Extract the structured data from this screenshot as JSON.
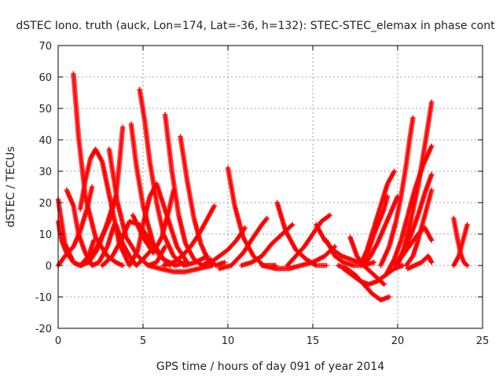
{
  "chart_data": {
    "type": "scatter",
    "title": "dSTEC Iono. truth (auck, Lon=174, Lat=-36, h=132): STEC-STEC_elemax in phase cont",
    "xlabel": "GPS time / hours of day 091 of year 2014",
    "ylabel": "dSTEC  / TECUs",
    "xlim": [
      0,
      25
    ],
    "ylim": [
      -20,
      70
    ],
    "x_ticks": [
      0,
      5,
      10,
      15,
      20,
      25
    ],
    "y_ticks": [
      -20,
      -10,
      0,
      10,
      20,
      30,
      40,
      50,
      60,
      70
    ],
    "grid": true,
    "legend": "none",
    "marker": "plus",
    "marker_color": "#ff0000",
    "series": [
      {
        "x": [
          0.0,
          0.4,
          0.9,
          1.3,
          1.8,
          2.1
        ],
        "y": [
          21,
          7,
          1,
          0,
          3,
          8
        ]
      },
      {
        "x": [
          0.0,
          0.4,
          0.9,
          1.3,
          1.7,
          2.0
        ],
        "y": [
          0,
          3,
          6,
          11,
          18,
          25
        ]
      },
      {
        "x": [
          0.0,
          0.2,
          0.5,
          0.9,
          1.3,
          1.8,
          2.3,
          2.8,
          3.4
        ],
        "y": [
          14,
          8,
          4,
          1,
          0,
          1,
          5,
          12,
          22
        ]
      },
      {
        "x": [
          0.5,
          0.9,
          1.2,
          1.6,
          2.0,
          2.4,
          2.9,
          3.3
        ],
        "y": [
          24,
          19,
          10,
          4,
          0,
          1,
          6,
          13
        ]
      },
      {
        "x": [
          0.9,
          1.2,
          1.6,
          2.2,
          2.9,
          3.4,
          3.8
        ],
        "y": [
          61,
          41,
          22,
          9,
          3,
          1,
          0
        ]
      },
      {
        "x": [
          1.3,
          1.6,
          1.9,
          2.2,
          2.6,
          3.1,
          3.6,
          4.2
        ],
        "y": [
          18,
          27,
          34,
          37,
          33,
          20,
          7,
          0
        ]
      },
      {
        "x": [
          1.4,
          2.2,
          3.0,
          3.4,
          3.6,
          3.8
        ],
        "y": [
          0,
          5,
          14,
          22,
          32,
          44
        ]
      },
      {
        "x": [
          3.0,
          3.5,
          4.0,
          4.7,
          5.3,
          5.8,
          6.3
        ],
        "y": [
          37,
          20,
          9,
          3,
          0,
          1,
          6
        ]
      },
      {
        "x": [
          3.4,
          3.8,
          4.2,
          4.6,
          5.0,
          5.5
        ],
        "y": [
          13,
          7,
          3,
          0,
          2,
          5
        ]
      },
      {
        "x": [
          2.6,
          3.2,
          3.7,
          4.2,
          4.8,
          5.4,
          6.0,
          6.6
        ],
        "y": [
          0,
          3,
          8,
          14,
          13,
          8,
          3,
          0
        ]
      },
      {
        "x": [
          4.3,
          4.6,
          5.0,
          5.6,
          6.2,
          6.9,
          7.5
        ],
        "y": [
          45,
          32,
          19,
          7,
          2,
          0,
          1
        ]
      },
      {
        "x": [
          4.8,
          5.1,
          5.4,
          5.8,
          6.2,
          6.8,
          7.4,
          8.1,
          8.8
        ],
        "y": [
          56,
          46,
          33,
          20,
          10,
          3,
          0,
          1,
          3
        ]
      },
      {
        "x": [
          4.2,
          4.7,
          5.0,
          5.4,
          5.8,
          6.4,
          7.0,
          7.6
        ],
        "y": [
          0,
          5,
          13,
          22,
          26,
          16,
          6,
          1
        ]
      },
      {
        "x": [
          4.4,
          5.0,
          5.6,
          6.1,
          6.5,
          6.8
        ],
        "y": [
          16,
          9,
          4,
          9,
          17,
          24
        ]
      },
      {
        "x": [
          6.3,
          6.7,
          7.1,
          7.5,
          8.0,
          8.5,
          9.0
        ],
        "y": [
          48,
          30,
          16,
          7,
          2,
          0,
          2
        ]
      },
      {
        "x": [
          7.2,
          7.6,
          8.0,
          8.4,
          8.8,
          9.3,
          9.8
        ],
        "y": [
          41,
          27,
          15,
          7,
          2,
          0,
          1
        ]
      },
      {
        "x": [
          5.3,
          6.0,
          6.8,
          7.5,
          8.3,
          9.1
        ],
        "y": [
          0,
          -1,
          -2,
          -2,
          -1,
          0
        ]
      },
      {
        "x": [
          6.2,
          6.8,
          7.3,
          7.8,
          8.3,
          8.8,
          9.2
        ],
        "y": [
          0,
          1,
          3,
          6,
          10,
          15,
          19
        ]
      },
      {
        "x": [
          8.5,
          9.0,
          9.5,
          10.0,
          10.5,
          11.0
        ],
        "y": [
          0,
          1,
          3,
          5,
          8,
          12
        ]
      },
      {
        "x": [
          10.0,
          10.4,
          10.9,
          11.5,
          12.1,
          12.8
        ],
        "y": [
          31,
          19,
          9,
          3,
          0,
          0
        ]
      },
      {
        "x": [
          9.5,
          10.2,
          10.9,
          11.5,
          12.0,
          12.3
        ],
        "y": [
          -1,
          0,
          4,
          9,
          13,
          15
        ]
      },
      {
        "x": [
          10.8,
          11.4,
          12.0,
          12.6,
          13.2,
          13.8
        ],
        "y": [
          0,
          1,
          3,
          7,
          10,
          13
        ]
      },
      {
        "x": [
          12.9,
          13.4,
          14.0,
          14.6,
          15.2,
          15.8
        ],
        "y": [
          20,
          11,
          5,
          2,
          0,
          0
        ]
      },
      {
        "x": [
          12.0,
          12.8,
          13.6,
          14.3,
          15.0,
          15.7,
          16.3
        ],
        "y": [
          0,
          -1,
          -1,
          0,
          1,
          3,
          6
        ]
      },
      {
        "x": [
          13.5,
          14.0,
          14.5,
          15.0,
          15.5,
          16.0
        ],
        "y": [
          0,
          3,
          6,
          10,
          14,
          16
        ]
      },
      {
        "x": [
          15.2,
          15.7,
          16.2,
          16.7,
          17.2,
          17.7
        ],
        "y": [
          13,
          8,
          5,
          3,
          2,
          1
        ]
      },
      {
        "x": [
          15.8,
          16.3,
          16.8,
          17.4,
          18.0,
          18.6
        ],
        "y": [
          8,
          3,
          1,
          0,
          0,
          1
        ]
      },
      {
        "x": [
          16.5,
          17.0,
          17.5,
          18.0,
          18.5,
          19.0,
          19.5
        ],
        "y": [
          0,
          -1,
          -3,
          -6,
          -9,
          -11,
          -10
        ]
      },
      {
        "x": [
          16.8,
          17.3,
          17.8,
          18.3,
          18.8,
          19.3,
          19.8,
          20.3
        ],
        "y": [
          -1,
          -3,
          -5,
          -6,
          -5,
          -3,
          -1,
          0
        ]
      },
      {
        "x": [
          17.2,
          17.6,
          18.0,
          18.4,
          18.8,
          19.2
        ],
        "y": [
          9,
          3,
          0,
          -2,
          -4,
          -6
        ]
      },
      {
        "x": [
          18.0,
          18.4,
          18.8,
          19.2,
          19.6,
          20.0
        ],
        "y": [
          0,
          3,
          7,
          12,
          17,
          22
        ]
      },
      {
        "x": [
          17.8,
          18.2,
          18.6,
          19.0,
          19.4,
          19.8
        ],
        "y": [
          0,
          5,
          12,
          19,
          26,
          30
        ]
      },
      {
        "x": [
          18.0,
          18.3,
          18.6,
          18.9,
          19.2,
          19.4
        ],
        "y": [
          0,
          5,
          10,
          14,
          18,
          22
        ]
      },
      {
        "x": [
          19.3,
          19.8,
          20.2,
          20.6,
          21.0,
          21.5,
          22.0
        ],
        "y": [
          -3,
          2,
          8,
          16,
          24,
          32,
          38
        ]
      },
      {
        "x": [
          19.0,
          19.5,
          19.9,
          20.2,
          20.5,
          20.7,
          20.9
        ],
        "y": [
          0,
          6,
          14,
          22,
          32,
          40,
          47
        ]
      },
      {
        "x": [
          20.0,
          20.4,
          20.8,
          21.2,
          21.5,
          21.8,
          22.0
        ],
        "y": [
          0,
          6,
          15,
          25,
          35,
          45,
          52
        ]
      },
      {
        "x": [
          19.8,
          20.3,
          20.8,
          21.2,
          21.6,
          22.0
        ],
        "y": [
          0,
          4,
          10,
          16,
          23,
          29
        ]
      },
      {
        "x": [
          20.5,
          20.9,
          21.2,
          21.5,
          21.8,
          22.0
        ],
        "y": [
          0,
          3,
          8,
          14,
          20,
          24
        ]
      },
      {
        "x": [
          20.0,
          20.4,
          20.8,
          21.2,
          21.6,
          22.0
        ],
        "y": [
          1,
          4,
          7,
          10,
          12,
          8
        ]
      },
      {
        "x": [
          20.6,
          21.0,
          21.4,
          21.8,
          22.0
        ],
        "y": [
          -1,
          0,
          1,
          3,
          1
        ]
      },
      {
        "x": [
          23.3,
          23.5,
          23.7,
          23.9,
          24.1
        ],
        "y": [
          15,
          9,
          4,
          1,
          0
        ]
      },
      {
        "x": [
          23.3,
          23.6,
          23.8,
          24.0,
          24.1
        ],
        "y": [
          0,
          3,
          7,
          11,
          13
        ]
      }
    ]
  }
}
